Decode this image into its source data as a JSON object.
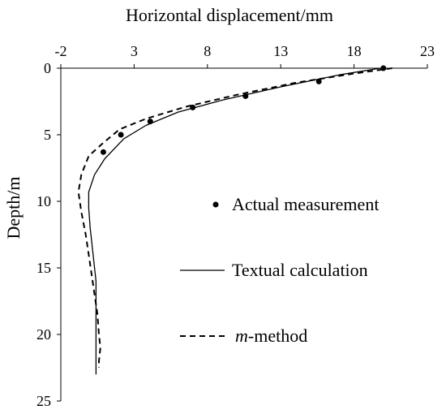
{
  "chart_data": {
    "type": "line",
    "title": "",
    "xlabel": "Horizontal displacement/mm",
    "ylabel": "Depth/m",
    "xlim": [
      -2,
      23
    ],
    "ylim": [
      0,
      25
    ],
    "y_inverted": true,
    "x_axis_position": "top",
    "x_ticks": [
      -2,
      3,
      8,
      13,
      18,
      23
    ],
    "x_tick_labels": [
      "-2",
      "3",
      "8",
      "13",
      "18",
      "23"
    ],
    "y_ticks": [
      0,
      5,
      10,
      15,
      20,
      25
    ],
    "y_tick_labels": [
      "0",
      "5",
      "10",
      "15",
      "20",
      "25"
    ],
    "grid": false,
    "legend_position": "center-right",
    "series": [
      {
        "name": "Actual measurement",
        "style": "markers",
        "color": "#000000",
        "points": [
          [
            20.0,
            0.0
          ],
          [
            15.6,
            1.0
          ],
          [
            10.6,
            2.1
          ],
          [
            7.0,
            2.95
          ],
          [
            4.1,
            4.0
          ],
          [
            2.1,
            5.0
          ],
          [
            0.9,
            6.3
          ]
        ]
      },
      {
        "name": "Textual calculation",
        "style": "solid",
        "color": "#000000",
        "points": [
          [
            19.8,
            0.0
          ],
          [
            17.0,
            0.5
          ],
          [
            13.0,
            1.4
          ],
          [
            9.0,
            2.4
          ],
          [
            6.0,
            3.3
          ],
          [
            3.8,
            4.3
          ],
          [
            2.3,
            5.3
          ],
          [
            1.0,
            6.8
          ],
          [
            0.3,
            8.0
          ],
          [
            -0.1,
            9.3
          ],
          [
            -0.1,
            10.5
          ],
          [
            0.0,
            12.0
          ],
          [
            0.2,
            14.0
          ],
          [
            0.4,
            16.0
          ],
          [
            0.4,
            18.0
          ],
          [
            0.4,
            20.0
          ],
          [
            0.4,
            22.0
          ],
          [
            0.4,
            23.0
          ]
        ]
      },
      {
        "name": "m-method",
        "style": "dashed",
        "color": "#000000",
        "points": [
          [
            20.6,
            0.0
          ],
          [
            18.0,
            0.4
          ],
          [
            14.0,
            1.1
          ],
          [
            10.0,
            2.0
          ],
          [
            6.5,
            2.9
          ],
          [
            3.8,
            3.8
          ],
          [
            2.0,
            4.6
          ],
          [
            0.8,
            5.7
          ],
          [
            -0.1,
            6.6
          ],
          [
            -0.6,
            8.0
          ],
          [
            -0.8,
            9.3
          ],
          [
            -0.6,
            10.8
          ],
          [
            -0.3,
            12.5
          ],
          [
            -0.1,
            14.0
          ],
          [
            0.1,
            15.5
          ],
          [
            0.3,
            17.0
          ],
          [
            0.5,
            18.5
          ],
          [
            0.6,
            20.0
          ],
          [
            0.7,
            21.0
          ],
          [
            0.6,
            22.0
          ],
          [
            0.6,
            22.5
          ]
        ]
      }
    ]
  },
  "legend": {
    "items": [
      {
        "label": "Actual measurement",
        "symbol": "dot"
      },
      {
        "label": "Textual calculation",
        "symbol": "solid-line"
      },
      {
        "label_italic": "m",
        "label_rest": "-method",
        "symbol": "dashed-line"
      }
    ]
  }
}
